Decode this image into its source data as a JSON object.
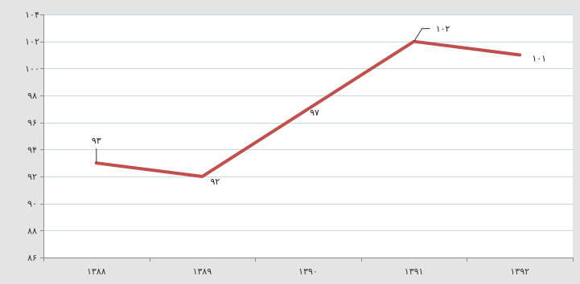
{
  "chart_data": {
    "type": "line",
    "title": "",
    "xlabel": "",
    "ylabel": "",
    "categories": [
      "۱۳۸۸",
      "۱۳۸۹",
      "۱۳۹۰",
      "۱۳۹۱",
      "۱۳۹۲"
    ],
    "series": [
      {
        "values": [
          93,
          92,
          97,
          102,
          101
        ],
        "color": "#c0504d"
      }
    ],
    "data_labels": [
      "۹۳",
      "۹۲",
      "۹۷",
      "۱۰۲",
      "۱۰۱"
    ],
    "ylim": [
      86,
      104
    ],
    "y_ticks": [
      86,
      88,
      90,
      92,
      94,
      96,
      98,
      100,
      102,
      104
    ],
    "y_tick_labels": [
      "۸۶",
      "۸۸",
      "۹۰",
      "۹۲",
      "۹۴",
      "۹۶",
      "۹۸",
      "۱۰۰",
      "۱۰۲",
      "۱۰۴"
    ],
    "grid": true,
    "legend": "none",
    "colors": {
      "background": "#e4e4e4",
      "plot_background": "#ffffff",
      "gridline": "#c8d7e6",
      "axis": "#8c8c8c"
    }
  }
}
